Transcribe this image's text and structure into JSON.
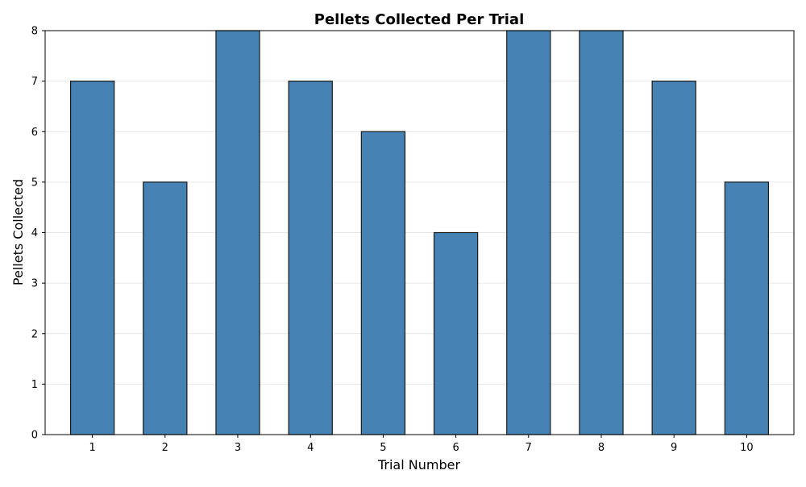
{
  "chart_data": {
    "type": "bar",
    "title": "Pellets Collected Per Trial",
    "xlabel": "Trial Number",
    "ylabel": "Pellets Collected",
    "categories": [
      "1",
      "2",
      "3",
      "4",
      "5",
      "6",
      "7",
      "8",
      "9",
      "10"
    ],
    "values": [
      7,
      5,
      8,
      7,
      6,
      4,
      8,
      8,
      7,
      5
    ],
    "ylim": [
      0,
      8
    ],
    "yticks": [
      "0",
      "1",
      "2",
      "3",
      "4",
      "5",
      "6",
      "7",
      "8"
    ],
    "grid": "y",
    "bar_color": "#4682b4",
    "bar_edge_color": "#1a1a1a"
  }
}
